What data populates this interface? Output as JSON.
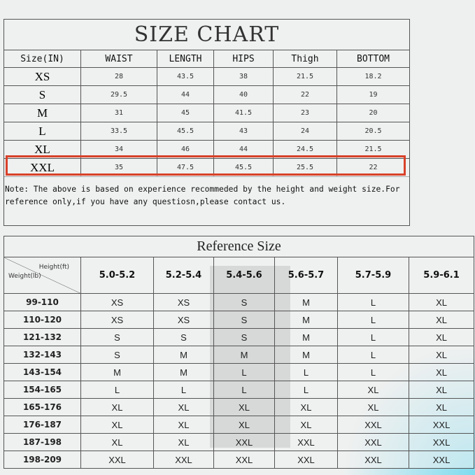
{
  "size_chart": {
    "title": "SIZE CHART",
    "headers": [
      "Size(IN)",
      "WAIST",
      "LENGTH",
      "HIPS",
      "Thigh",
      "BOTTOM"
    ],
    "rows": [
      [
        "XS",
        "28",
        "43.5",
        "38",
        "21.5",
        "18.2"
      ],
      [
        "S",
        "29.5",
        "44",
        "40",
        "22",
        "19"
      ],
      [
        "M",
        "31",
        "45",
        "41.5",
        "23",
        "20"
      ],
      [
        "L",
        "33.5",
        "45.5",
        "43",
        "24",
        "20.5"
      ],
      [
        "XL",
        "34",
        "46",
        "44",
        "24.5",
        "21.5"
      ],
      [
        "XXL",
        "35",
        "47.5",
        "45.5",
        "25.5",
        "22"
      ]
    ],
    "highlighted_size": "XXL",
    "highlight_color": "#d8412a",
    "note": "Note: The above is based on experience recommeded by the height and weight size.For reference only,if you have any questiosn,please contact us."
  },
  "reference_size": {
    "title": "Reference Size",
    "corner_height": "Height(ft)",
    "corner_weight": "Weight(lb)",
    "heights": [
      "5.0-5.2",
      "5.2-5.4",
      "5.4-5.6",
      "5.6-5.7",
      "5.7-5.9",
      "5.9-6.1"
    ],
    "rows": [
      {
        "weight": "99-110",
        "sizes": [
          "XS",
          "XS",
          "S",
          "M",
          "L",
          "XL"
        ]
      },
      {
        "weight": "110-120",
        "sizes": [
          "XS",
          "XS",
          "S",
          "M",
          "L",
          "XL"
        ]
      },
      {
        "weight": "121-132",
        "sizes": [
          "S",
          "S",
          "S",
          "M",
          "L",
          "XL"
        ]
      },
      {
        "weight": "132-143",
        "sizes": [
          "S",
          "M",
          "M",
          "M",
          "L",
          "XL"
        ]
      },
      {
        "weight": "143-154",
        "sizes": [
          "M",
          "M",
          "L",
          "L",
          "L",
          "XL"
        ]
      },
      {
        "weight": "154-165",
        "sizes": [
          "L",
          "L",
          "L",
          "L",
          "XL",
          "XL"
        ]
      },
      {
        "weight": "165-176",
        "sizes": [
          "XL",
          "XL",
          "XL",
          "XL",
          "XL",
          "XL"
        ]
      },
      {
        "weight": "176-187",
        "sizes": [
          "XL",
          "XL",
          "XL",
          "XL",
          "XXL",
          "XXL"
        ]
      },
      {
        "weight": "187-198",
        "sizes": [
          "XL",
          "XL",
          "XXL",
          "XXL",
          "XXL",
          "XXL"
        ]
      },
      {
        "weight": "198-209",
        "sizes": [
          "XXL",
          "XXL",
          "XXL",
          "XXL",
          "XXL",
          "XXL"
        ]
      }
    ]
  }
}
